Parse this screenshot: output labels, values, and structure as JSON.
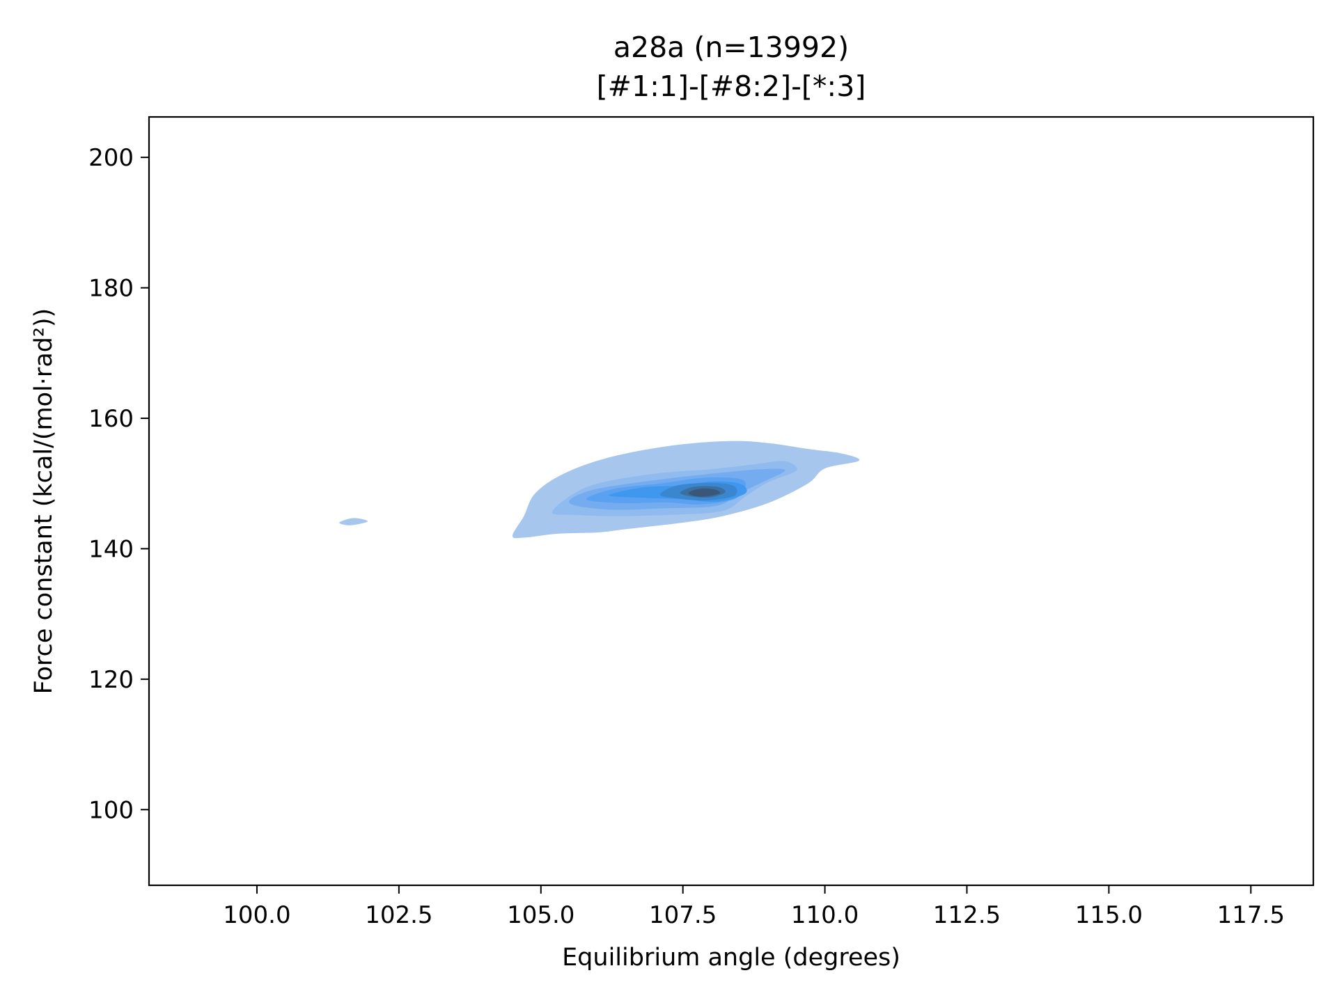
{
  "chart_data": {
    "type": "kde_contour",
    "title": "a28a (n=13992)",
    "subtitle": "[#1:1]-[#8:2]-[*:3]",
    "xlabel": "Equilibrium angle (degrees)",
    "ylabel": "Force constant (kcal/(mol·rad²))",
    "xlim": [
      98.1,
      118.6
    ],
    "ylim": [
      88.4,
      206.2
    ],
    "x_ticks": [
      "100.0",
      "102.5",
      "105.0",
      "107.5",
      "110.0",
      "112.5",
      "115.0",
      "117.5"
    ],
    "x_tick_values": [
      100.0,
      102.5,
      105.0,
      107.5,
      110.0,
      112.5,
      115.0,
      117.5
    ],
    "y_ticks": [
      "100",
      "120",
      "140",
      "160",
      "180",
      "200"
    ],
    "y_tick_values": [
      100,
      120,
      140,
      160,
      180,
      200
    ],
    "grid": false,
    "legend": "none",
    "density_peak": {
      "x": 107.8,
      "y": 148.5
    },
    "contour_levels": [
      {
        "level": 1,
        "color": "#a6c6ee",
        "points": [
          [
            104.5,
            142
          ],
          [
            104.7,
            145
          ],
          [
            104.9,
            148.5
          ],
          [
            105.4,
            151.5
          ],
          [
            106.2,
            154
          ],
          [
            107.3,
            155.8
          ],
          [
            108.3,
            156.5
          ],
          [
            109.0,
            156.2
          ],
          [
            109.7,
            155.3
          ],
          [
            110.3,
            154.6
          ],
          [
            110.6,
            153.5
          ],
          [
            110.0,
            152.3
          ],
          [
            109.7,
            150
          ],
          [
            109.0,
            147
          ],
          [
            108.2,
            145
          ],
          [
            107.5,
            144
          ],
          [
            106.5,
            143
          ],
          [
            106.0,
            142.5
          ],
          [
            105.3,
            142.3
          ],
          [
            104.7,
            141.7
          ]
        ]
      },
      {
        "level": 1,
        "color": "#a6c6ee",
        "points": [
          [
            101.45,
            144
          ],
          [
            101.7,
            144.7
          ],
          [
            101.95,
            144.2
          ],
          [
            101.65,
            143.6
          ]
        ]
      },
      {
        "level": 2,
        "color": "#8fbbef",
        "points": [
          [
            105.2,
            145.5
          ],
          [
            105.5,
            148
          ],
          [
            106.0,
            150
          ],
          [
            107.0,
            151.5
          ],
          [
            108.0,
            152.2
          ],
          [
            108.8,
            153
          ],
          [
            109.3,
            153.4
          ],
          [
            109.5,
            152
          ],
          [
            109.0,
            150.2
          ],
          [
            108.6,
            148
          ],
          [
            108.2,
            145.8
          ],
          [
            107.3,
            145.2
          ],
          [
            106.3,
            145
          ],
          [
            105.6,
            145.2
          ]
        ]
      },
      {
        "level": 3,
        "color": "#75acf0",
        "points": [
          [
            105.5,
            147
          ],
          [
            105.9,
            149
          ],
          [
            107.0,
            150.5
          ],
          [
            108.0,
            151.5
          ],
          [
            108.9,
            152.2
          ],
          [
            109.3,
            152
          ],
          [
            108.9,
            150.2
          ],
          [
            108.5,
            148.5
          ],
          [
            108.1,
            146.6
          ],
          [
            107.2,
            146.2
          ],
          [
            106.2,
            146
          ]
        ]
      },
      {
        "level": 4,
        "color": "#5aa1f1",
        "points": [
          [
            105.8,
            147.6
          ],
          [
            106.3,
            149.2
          ],
          [
            107.1,
            150
          ],
          [
            107.9,
            150.9
          ],
          [
            108.5,
            150.7
          ],
          [
            108.6,
            149.5
          ],
          [
            108.4,
            147.6
          ],
          [
            107.8,
            146.8
          ],
          [
            107.2,
            147.1
          ],
          [
            106.4,
            147
          ]
        ]
      },
      {
        "level": 5,
        "color": "#3f98ee",
        "points": [
          [
            106.2,
            148.2
          ],
          [
            106.8,
            149.4
          ],
          [
            107.5,
            149.7
          ],
          [
            108.0,
            150.3
          ],
          [
            108.5,
            150
          ],
          [
            108.6,
            148.5
          ],
          [
            108.1,
            147.2
          ],
          [
            107.5,
            147.6
          ],
          [
            106.8,
            147.8
          ]
        ]
      },
      {
        "level": 6,
        "color": "#3a87cf",
        "points": [
          [
            107.1,
            148.3
          ],
          [
            107.4,
            149.7
          ],
          [
            108.0,
            150.1
          ],
          [
            108.4,
            149.6
          ],
          [
            108.4,
            148.1
          ],
          [
            107.9,
            147.4
          ],
          [
            107.4,
            147.7
          ]
        ]
      },
      {
        "level": 7,
        "color": "#3b6fa0",
        "points": [
          [
            107.45,
            148.6
          ],
          [
            107.7,
            149.5
          ],
          [
            108.1,
            149.5
          ],
          [
            108.25,
            148.7
          ],
          [
            108.0,
            147.9
          ],
          [
            107.65,
            148.0
          ]
        ]
      },
      {
        "level": 8,
        "color": "#3a5678",
        "points": [
          [
            107.6,
            148.6
          ],
          [
            107.8,
            149.2
          ],
          [
            108.05,
            149.1
          ],
          [
            108.15,
            148.5
          ],
          [
            107.9,
            148.0
          ],
          [
            107.7,
            148.1
          ]
        ]
      }
    ]
  }
}
